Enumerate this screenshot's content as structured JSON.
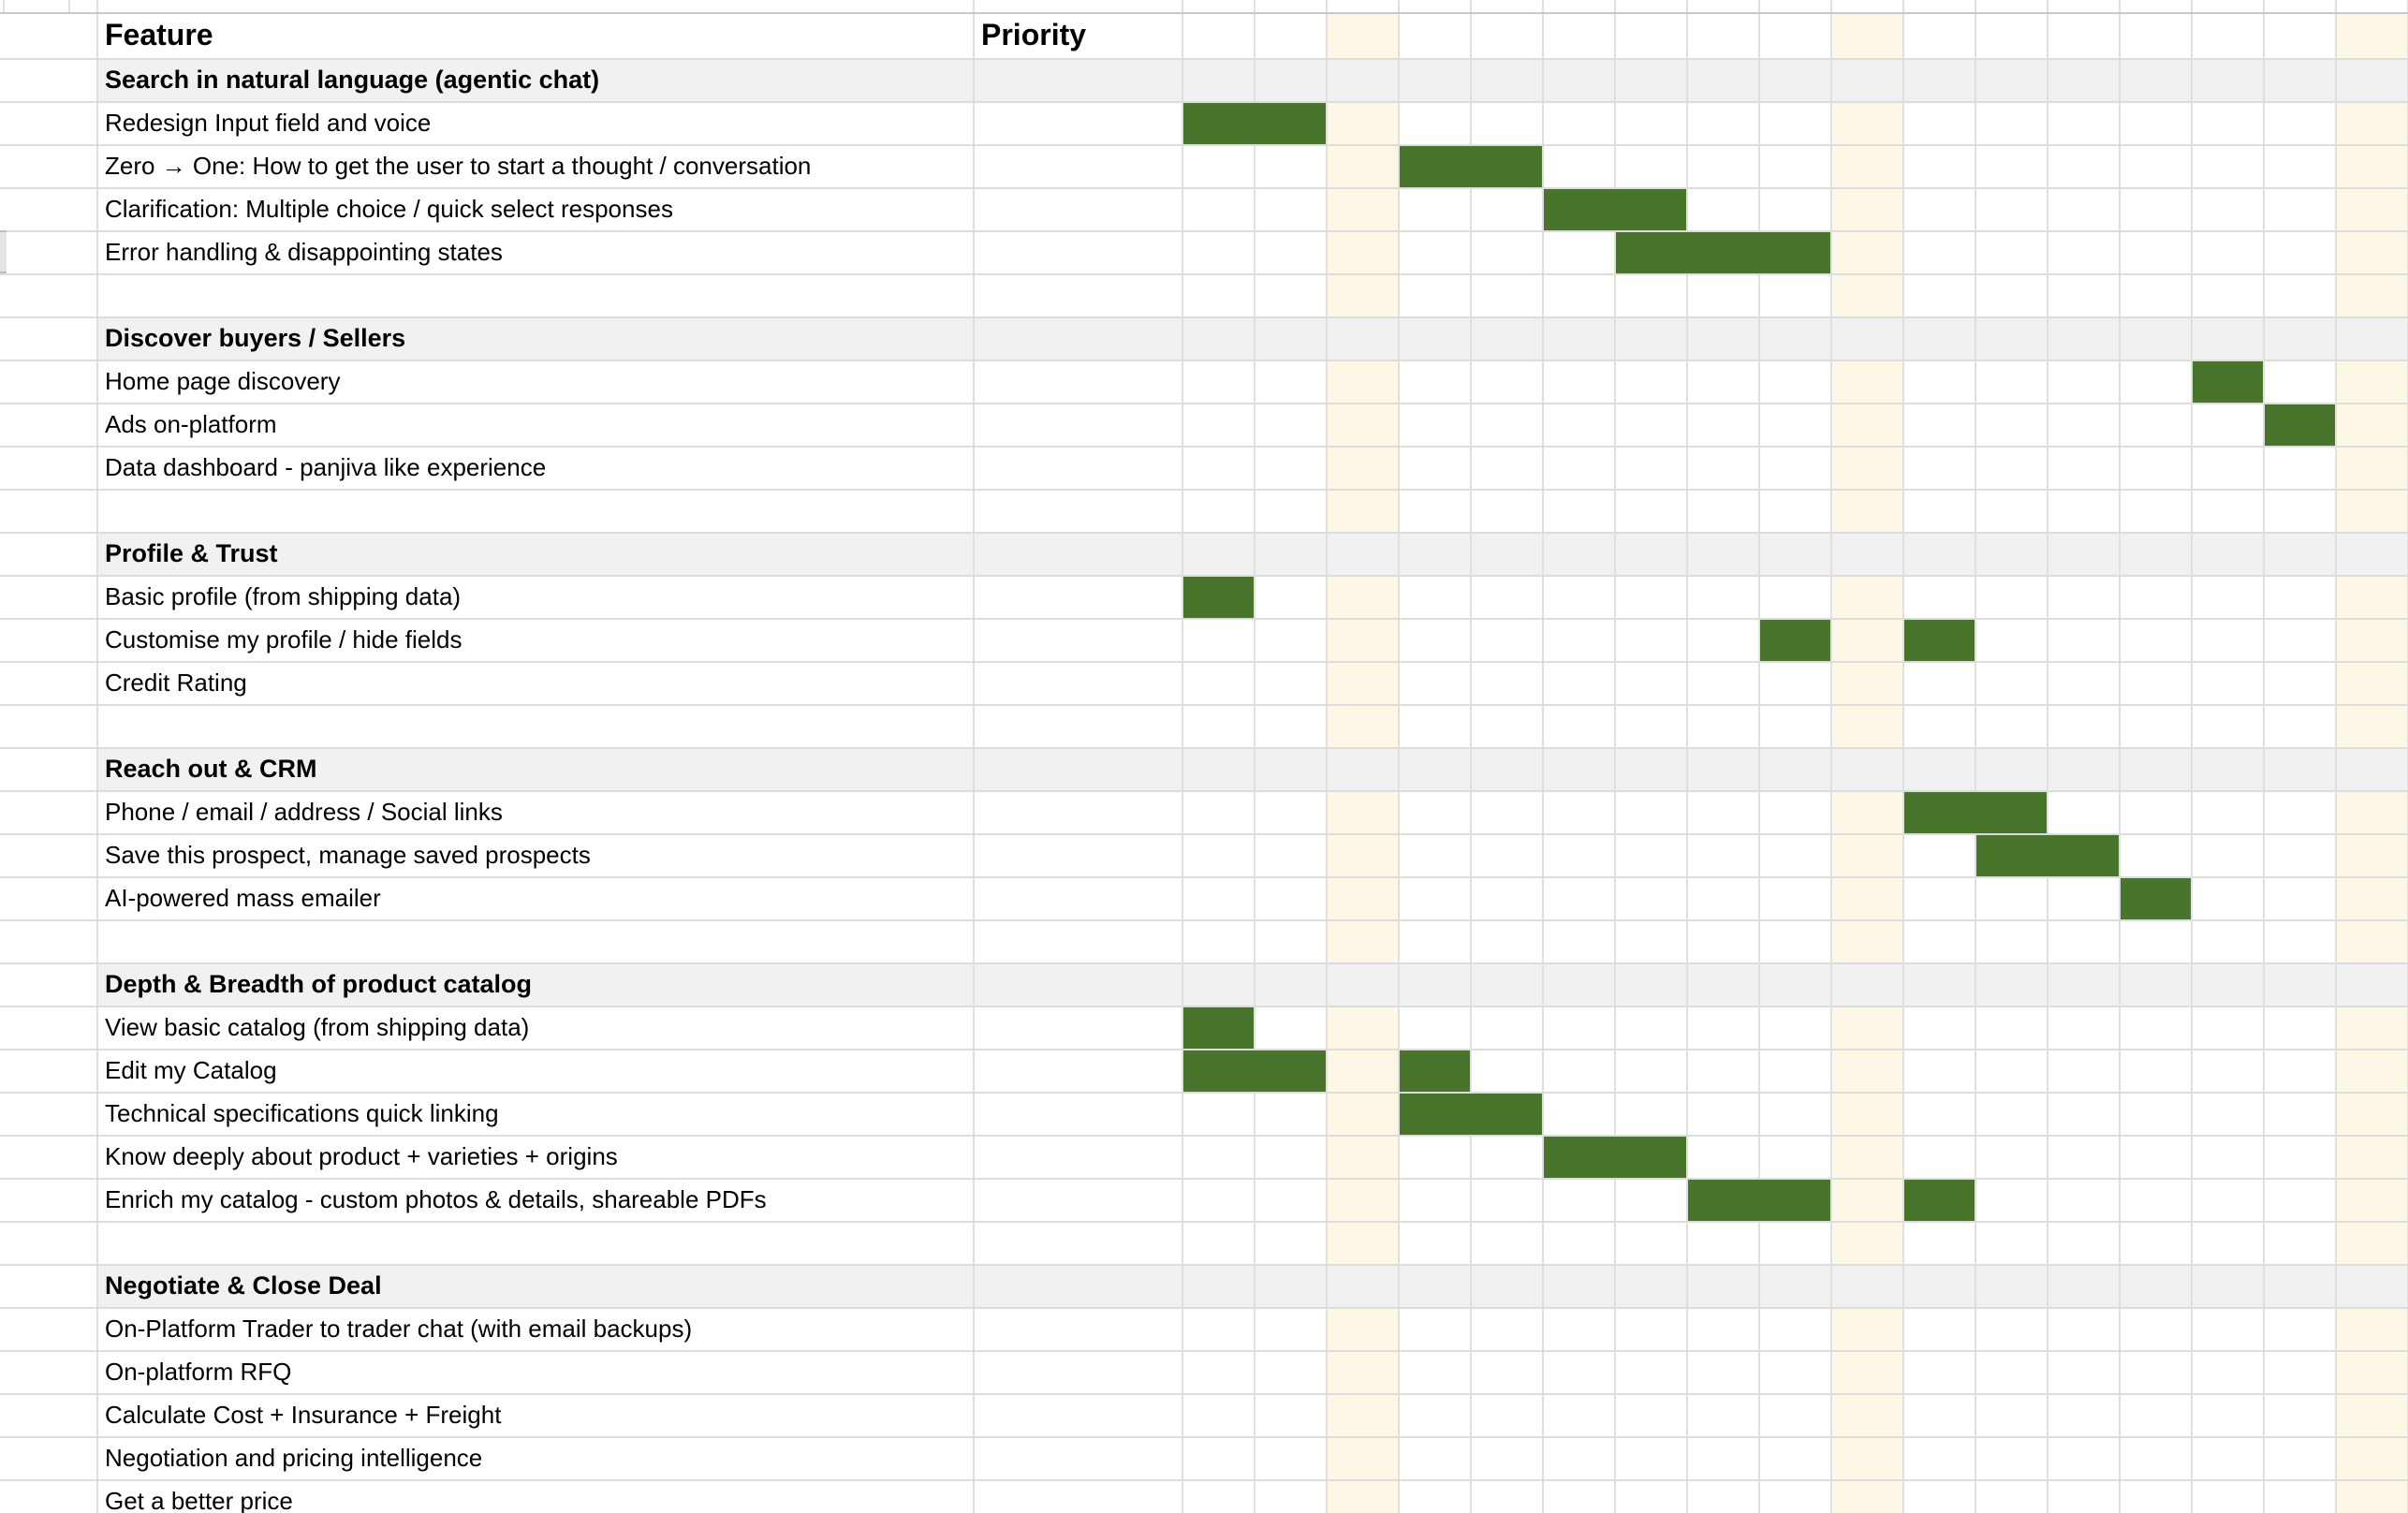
{
  "columns": {
    "feature": "Feature",
    "priority": "Priority"
  },
  "timeline": {
    "num_columns": 17,
    "beige_columns": [
      2,
      9,
      16
    ]
  },
  "colors": {
    "bar_green": "#49742b",
    "beige_column": "#fdf7e6",
    "section_band": "#f1f1f1",
    "grid_vertical": "#e0e0e0",
    "grid_horizontal": "#dcdcdc",
    "grid_dark": "#c8c8c8"
  },
  "rows": [
    {
      "type": "section",
      "label": "Search in natural language (agentic chat)",
      "bars": []
    },
    {
      "type": "item",
      "label": "Redesign Input field and voice",
      "bars": [
        {
          "start": 0,
          "span": 2
        }
      ]
    },
    {
      "type": "item",
      "label": "Zero → One: How to get the user to start a thought / conversation",
      "bars": [
        {
          "start": 3,
          "span": 2
        }
      ]
    },
    {
      "type": "item",
      "label": "Clarification: Multiple choice / quick select responses",
      "bars": [
        {
          "start": 5,
          "span": 2
        }
      ]
    },
    {
      "type": "item",
      "label": "Error handling & disappointing states",
      "bars": [
        {
          "start": 6,
          "span": 3
        }
      ]
    },
    {
      "type": "blank",
      "label": "",
      "bars": []
    },
    {
      "type": "section",
      "label": "Discover buyers / Sellers",
      "bars": []
    },
    {
      "type": "item",
      "label": "Home page discovery",
      "bars": [
        {
          "start": 14,
          "span": 1
        }
      ]
    },
    {
      "type": "item",
      "label": "Ads on-platform",
      "bars": [
        {
          "start": 15,
          "span": 1
        }
      ]
    },
    {
      "type": "item",
      "label": "Data dashboard - panjiva like experience",
      "bars": []
    },
    {
      "type": "blank",
      "label": "",
      "bars": []
    },
    {
      "type": "section",
      "label": "Profile & Trust",
      "bars": []
    },
    {
      "type": "item",
      "label": "Basic profile (from shipping data)",
      "bars": [
        {
          "start": 0,
          "span": 1
        }
      ]
    },
    {
      "type": "item",
      "label": "Customise my profile / hide fields",
      "bars": [
        {
          "start": 8,
          "span": 1
        },
        {
          "start": 10,
          "span": 1
        }
      ]
    },
    {
      "type": "item",
      "label": "Credit Rating",
      "bars": []
    },
    {
      "type": "blank",
      "label": "",
      "bars": []
    },
    {
      "type": "section",
      "label": "Reach out & CRM",
      "bars": []
    },
    {
      "type": "item",
      "label": "Phone / email / address / Social links",
      "bars": [
        {
          "start": 10,
          "span": 2
        }
      ]
    },
    {
      "type": "item",
      "label": "Save this prospect, manage saved prospects",
      "bars": [
        {
          "start": 11,
          "span": 2
        }
      ]
    },
    {
      "type": "item",
      "label": "AI-powered mass emailer",
      "bars": [
        {
          "start": 13,
          "span": 1
        }
      ]
    },
    {
      "type": "blank",
      "label": "",
      "bars": []
    },
    {
      "type": "section",
      "label": "Depth & Breadth of product catalog",
      "bars": []
    },
    {
      "type": "item",
      "label": "View basic catalog (from shipping data)",
      "bars": [
        {
          "start": 0,
          "span": 1
        }
      ]
    },
    {
      "type": "item",
      "label": "Edit my Catalog",
      "bars": [
        {
          "start": 0,
          "span": 2
        },
        {
          "start": 3,
          "span": 1
        }
      ]
    },
    {
      "type": "item",
      "label": "Technical specifications quick linking",
      "bars": [
        {
          "start": 3,
          "span": 2
        }
      ]
    },
    {
      "type": "item",
      "label": "Know deeply about product + varieties + origins",
      "bars": [
        {
          "start": 5,
          "span": 2
        }
      ]
    },
    {
      "type": "item",
      "label": "Enrich my catalog - custom photos & details, shareable PDFs",
      "bars": [
        {
          "start": 7,
          "span": 2
        },
        {
          "start": 10,
          "span": 1
        }
      ]
    },
    {
      "type": "blank",
      "label": "",
      "bars": []
    },
    {
      "type": "section",
      "label": "Negotiate & Close Deal",
      "bars": []
    },
    {
      "type": "item",
      "label": "On-Platform Trader to trader chat (with email backups)",
      "bars": []
    },
    {
      "type": "item",
      "label": "On-platform RFQ",
      "bars": []
    },
    {
      "type": "item",
      "label": "Calculate Cost + Insurance + Freight",
      "bars": []
    },
    {
      "type": "item",
      "label": "Negotiation and pricing intelligence",
      "bars": []
    },
    {
      "type": "item",
      "label": "Get a better price",
      "bars": []
    }
  ]
}
